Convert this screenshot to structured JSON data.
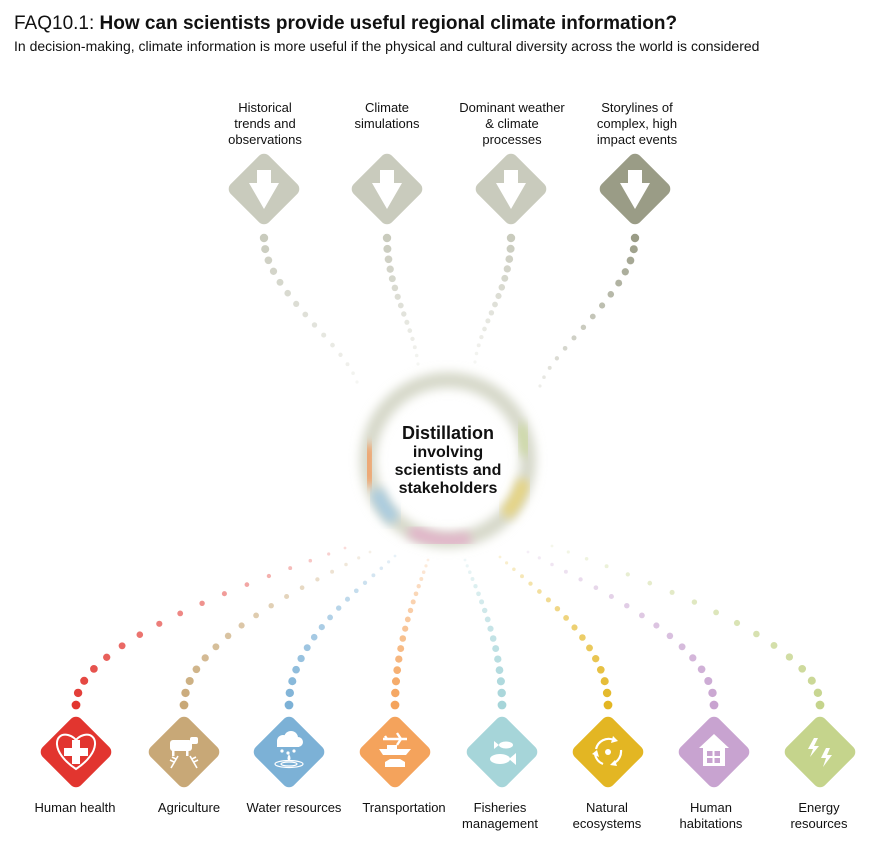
{
  "header": {
    "prefix": "FAQ10.1: ",
    "title": "How can scientists provide useful regional climate information?",
    "subtitle": "In decision-making, climate information is more useful if the physical and cultural diversity across the world is considered"
  },
  "center": {
    "line1": "Distillation",
    "line2": "involving",
    "line3": "scientists and",
    "line4": "stakeholders"
  },
  "sources": [
    {
      "line1": "Historical",
      "line2": "trends and",
      "line3": "observations",
      "color": "#c9cbbd"
    },
    {
      "line1": "Climate",
      "line2": "simulations",
      "line3": "",
      "color": "#c9cbbd"
    },
    {
      "line1": "Dominant weather",
      "line2": "& climate",
      "line3": "processes",
      "color": "#c9cbbd"
    },
    {
      "line1": "Storylines of",
      "line2": "complex, high",
      "line3": "impact events",
      "color": "#9a9c86"
    }
  ],
  "sectors": [
    {
      "line1": "Human health",
      "line2": "",
      "color": "#e2352f",
      "icon": "health-cross-icon"
    },
    {
      "line1": "Agriculture",
      "line2": "",
      "color": "#c8a877",
      "icon": "cow-wheat-icon"
    },
    {
      "line1": "Water resources",
      "line2": "",
      "color": "#7cb1d6",
      "icon": "cloud-rain-icon"
    },
    {
      "line1": "Transportation",
      "line2": "",
      "color": "#f4a35c",
      "icon": "plane-ship-car-icon"
    },
    {
      "line1": "Fisheries",
      "line2": "management",
      "color": "#a6d5d9",
      "icon": "fish-icon"
    },
    {
      "line1": "Natural",
      "line2": "ecosystems",
      "color": "#e3b623",
      "icon": "cycle-icon"
    },
    {
      "line1": "Human",
      "line2": "habitations",
      "color": "#c8a3d0",
      "icon": "house-icon"
    },
    {
      "line1": "Energy",
      "line2": "resources",
      "color": "#c5d48c",
      "icon": "lightning-icon"
    }
  ]
}
